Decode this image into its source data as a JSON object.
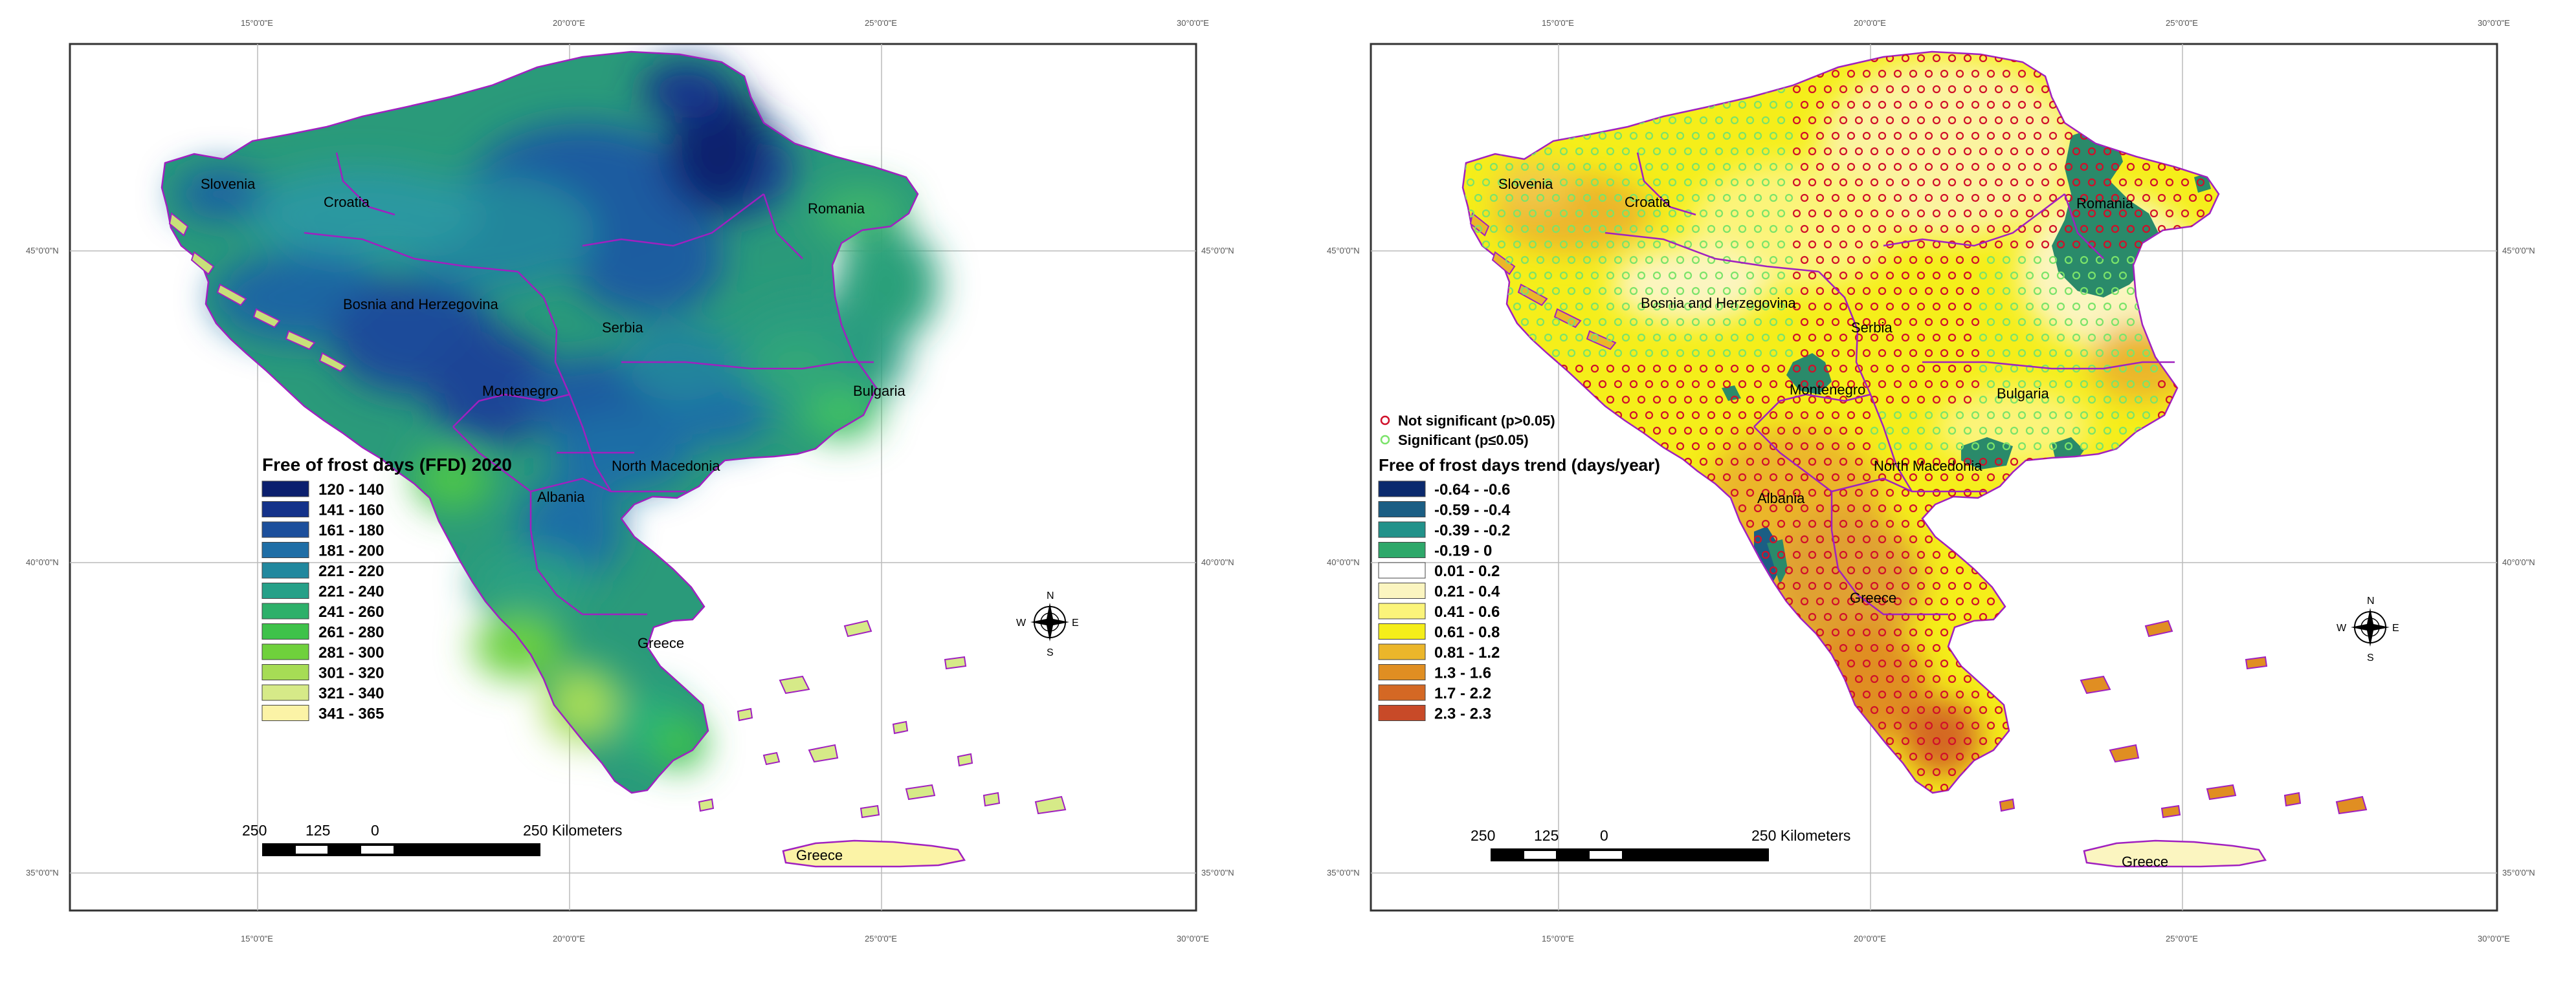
{
  "left_map": {
    "top_ticks": [
      "15°0'0\"E",
      "20°0'0\"E",
      "25°0'0\"E",
      "30°0'0\"E"
    ],
    "bottom_ticks": [
      "15°0'0\"E",
      "20°0'0\"E",
      "25°0'0\"E",
      "30°0'0\"E"
    ],
    "side_ticks": [
      "45°0'0\"N",
      "40°0'0\"N",
      "35°0'0\"N"
    ],
    "country_labels": [
      "Slovenia",
      "Croatia",
      "Romania",
      "Bosnia and Herzegovina",
      "Serbia",
      "Montenegro",
      "Bulgaria",
      "North Macedonia",
      "Albania",
      "Greece",
      "Greece"
    ],
    "legend": {
      "title": "Free of frost days (FFD) 2020",
      "items": [
        {
          "label": "120 - 140",
          "color": "#0b1f6e"
        },
        {
          "label": "141 - 160",
          "color": "#14328a"
        },
        {
          "label": "161 - 180",
          "color": "#1c4f9c"
        },
        {
          "label": "181 - 200",
          "color": "#1f6ea6"
        },
        {
          "label": "221 - 220",
          "color": "#21889e"
        },
        {
          "label": "221 - 240",
          "color": "#26a088"
        },
        {
          "label": "241 - 260",
          "color": "#2db06a"
        },
        {
          "label": "261 - 280",
          "color": "#3ec24a"
        },
        {
          "label": "281 - 300",
          "color": "#6fd13c"
        },
        {
          "label": "301 - 320",
          "color": "#a6dc55"
        },
        {
          "label": "321 - 340",
          "color": "#d6ea88"
        },
        {
          "label": "341 - 365",
          "color": "#fbf3a6"
        }
      ]
    },
    "scale_bar": {
      "labels": [
        "250",
        "125",
        "0",
        "250 Kilometers"
      ]
    },
    "compass": {
      "n": "N",
      "s": "S",
      "e": "E",
      "w": "W"
    }
  },
  "right_map": {
    "top_ticks": [
      "15°0'0\"E",
      "20°0'0\"E",
      "25°0'0\"E",
      "30°0'0\"E"
    ],
    "bottom_ticks": [
      "15°0'0\"E",
      "20°0'0\"E",
      "25°0'0\"E",
      "30°0'0\"E"
    ],
    "side_ticks": [
      "45°0'0\"N",
      "40°0'0\"N",
      "35°0'0\"N"
    ],
    "country_labels": [
      "Slovenia",
      "Croatia",
      "Romania",
      "Bosnia and Herzegovina",
      "Serbia",
      "Montenegro",
      "Bulgaria",
      "North Macedonia",
      "Albania",
      "Greece",
      "Greece"
    ],
    "significance": {
      "not_significant": "Not significant (p>0.05)",
      "significant": "Significant (p≤0.05)",
      "not_significant_color": "#d0102a",
      "significant_color": "#7be36a"
    },
    "legend": {
      "title": "Free of frost days trend (days/year)",
      "items": [
        {
          "label": "-0.64 - -0.6",
          "color": "#0b2a6e"
        },
        {
          "label": "-0.59 - -0.4",
          "color": "#1b5e84"
        },
        {
          "label": "-0.39 - -0.2",
          "color": "#22928a"
        },
        {
          "label": "-0.19 - 0",
          "color": "#2ea86a"
        },
        {
          "label": "0.01 - 0.2",
          "color": "#ffffff"
        },
        {
          "label": "0.21 - 0.4",
          "color": "#fbf5c0"
        },
        {
          "label": "0.41 - 0.6",
          "color": "#fbf47a"
        },
        {
          "label": "0.61 - 0.8",
          "color": "#f5ee1a"
        },
        {
          "label": "0.81 - 1.2",
          "color": "#ebb62a"
        },
        {
          "label": "1.3 - 1.6",
          "color": "#e08e22"
        },
        {
          "label": "1.7 - 2.2",
          "color": "#d46824"
        },
        {
          "label": "2.3 - 2.3",
          "color": "#c84a28"
        }
      ]
    },
    "scale_bar": {
      "labels": [
        "250",
        "125",
        "0",
        "250 Kilometers"
      ]
    },
    "compass": {
      "n": "N",
      "s": "S",
      "e": "E",
      "w": "W"
    }
  },
  "colors": {
    "border": "#a020c0",
    "frame": "#333333",
    "sea": "#ffffff"
  }
}
